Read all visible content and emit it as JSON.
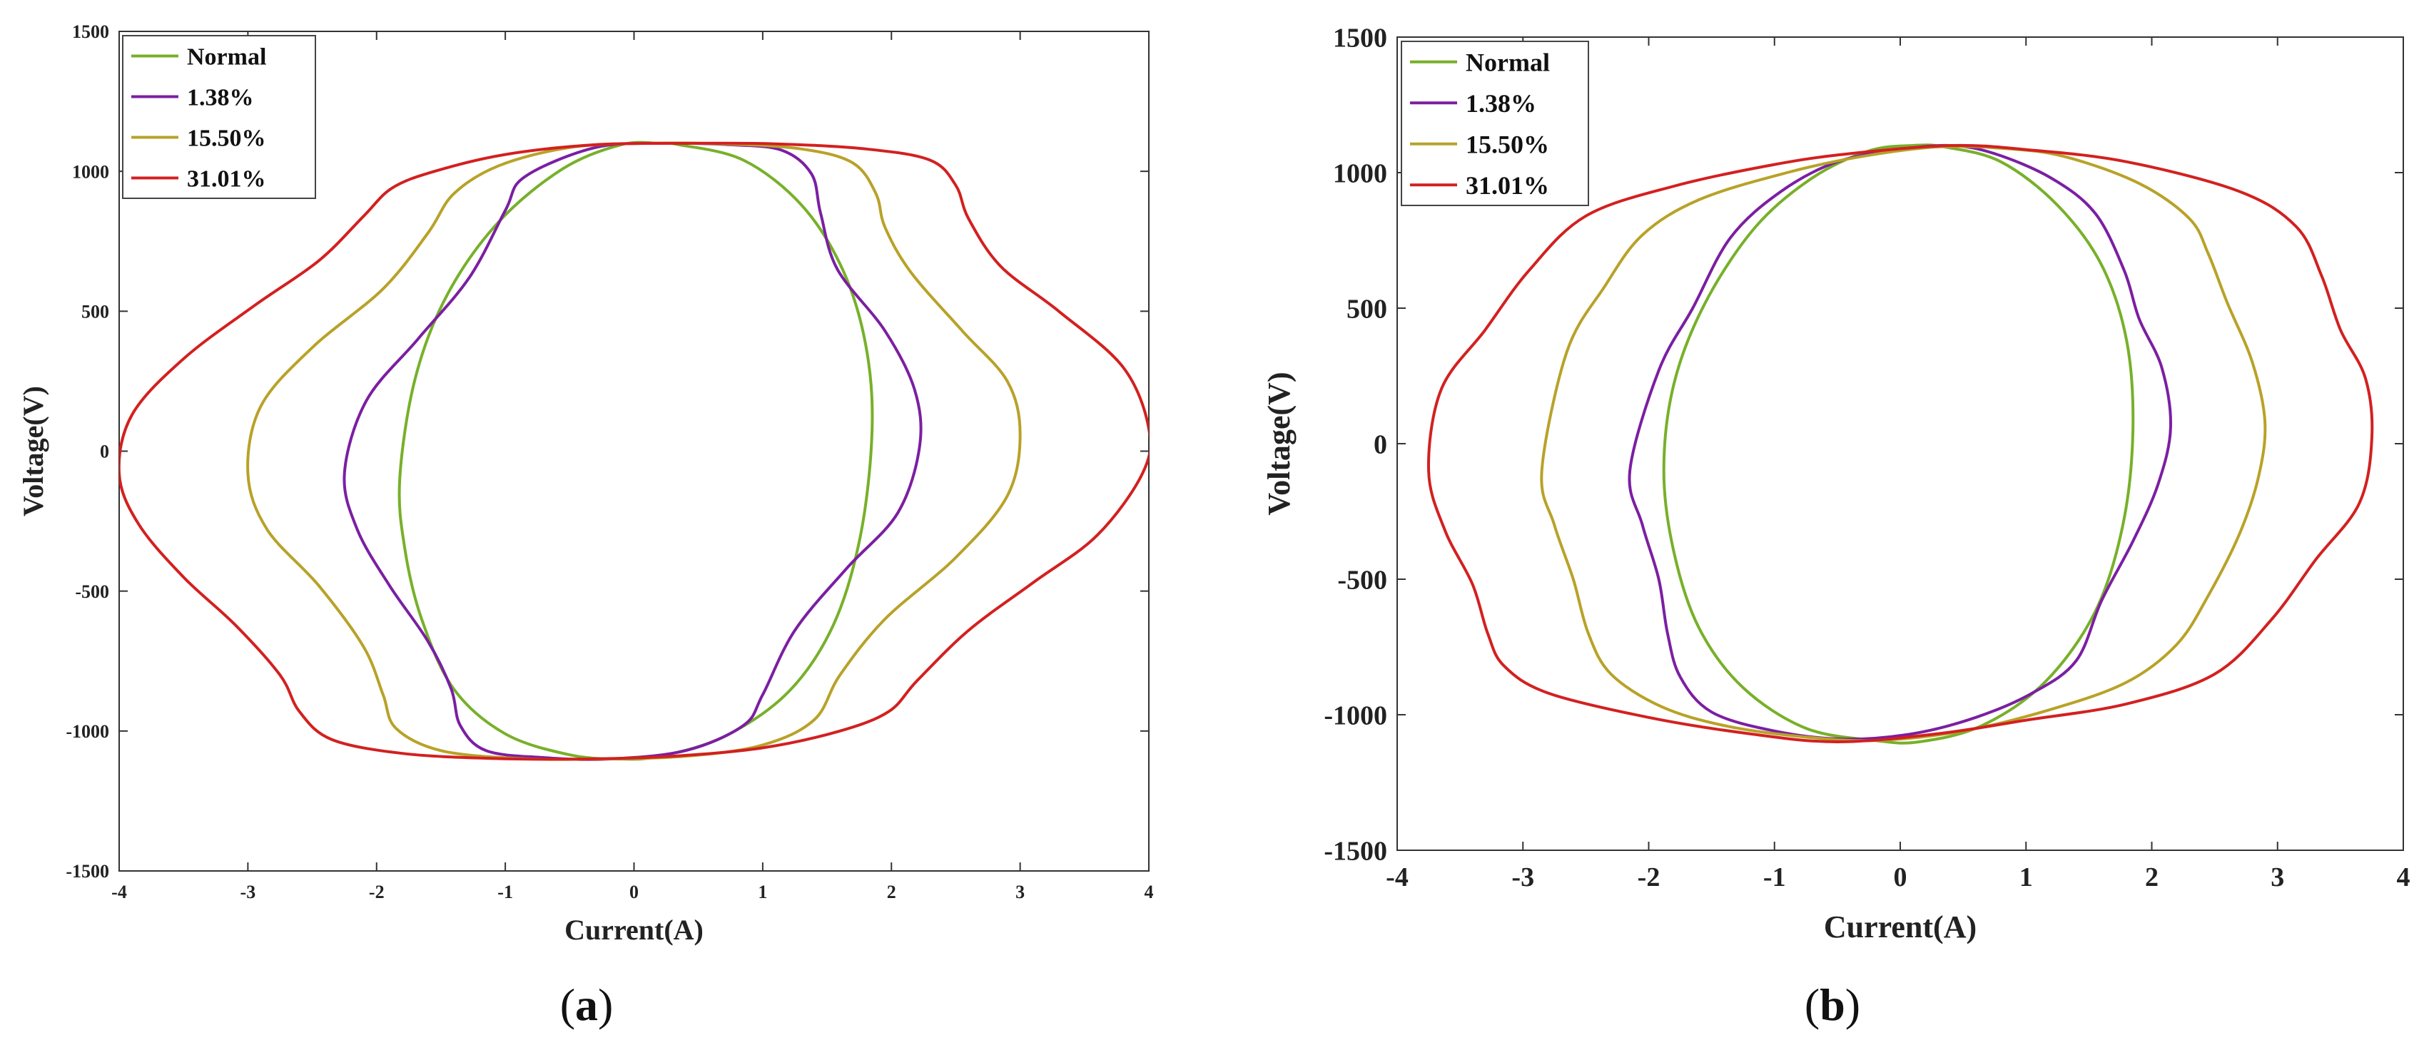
{
  "chart_data": [
    {
      "type": "line",
      "panel_label": "a",
      "title": "",
      "xlabel": "Current(A)",
      "ylabel": "Voltage(V)",
      "xlim": [
        -4,
        4
      ],
      "ylim": [
        -1500,
        1500
      ],
      "xticks": [
        "-4",
        "-3",
        "-2",
        "-1",
        "0",
        "1",
        "2",
        "3",
        "4"
      ],
      "yticks": [
        "1500",
        "1000",
        "500",
        "0",
        "-500",
        "-1000",
        "-1500"
      ],
      "grid": false,
      "legend_position": "top-left",
      "series": [
        {
          "name": "Normal",
          "color": "#77B02A",
          "points": [
            [
              -1.82,
              -100
            ],
            [
              -1.78,
              -350
            ],
            [
              -1.65,
              -600
            ],
            [
              -1.4,
              -850
            ],
            [
              -1.0,
              -1010
            ],
            [
              -0.5,
              -1085
            ],
            [
              -0.1,
              -1100
            ],
            [
              0.2,
              -1090
            ],
            [
              0.7,
              -1020
            ],
            [
              1.2,
              -860
            ],
            [
              1.55,
              -620
            ],
            [
              1.76,
              -300
            ],
            [
              1.85,
              80
            ],
            [
              1.8,
              380
            ],
            [
              1.62,
              650
            ],
            [
              1.3,
              880
            ],
            [
              0.85,
              1040
            ],
            [
              0.35,
              1095
            ],
            [
              0.2,
              1100
            ],
            [
              -0.1,
              1095
            ],
            [
              -0.55,
              1010
            ],
            [
              -1.05,
              820
            ],
            [
              -1.45,
              560
            ],
            [
              -1.7,
              260
            ],
            [
              -1.82,
              -100
            ]
          ]
        },
        {
          "name": "1.38%",
          "color": "#7B1FA2",
          "points": [
            [
              -2.25,
              -80
            ],
            [
              -2.15,
              -280
            ],
            [
              -1.9,
              -480
            ],
            [
              -1.6,
              -680
            ],
            [
              -1.42,
              -850
            ],
            [
              -1.35,
              -980
            ],
            [
              -1.15,
              -1070
            ],
            [
              -0.7,
              -1095
            ],
            [
              -0.2,
              -1100
            ],
            [
              0.4,
              -1070
            ],
            [
              0.85,
              -980
            ],
            [
              1.0,
              -870
            ],
            [
              1.25,
              -640
            ],
            [
              1.65,
              -420
            ],
            [
              2.05,
              -220
            ],
            [
              2.22,
              20
            ],
            [
              2.18,
              220
            ],
            [
              1.95,
              430
            ],
            [
              1.58,
              650
            ],
            [
              1.45,
              850
            ],
            [
              1.38,
              990
            ],
            [
              1.15,
              1075
            ],
            [
              0.75,
              1095
            ],
            [
              0.25,
              1100
            ],
            [
              -0.3,
              1085
            ],
            [
              -0.85,
              980
            ],
            [
              -1.0,
              860
            ],
            [
              -1.28,
              620
            ],
            [
              -1.68,
              400
            ],
            [
              -2.08,
              180
            ],
            [
              -2.25,
              -80
            ]
          ]
        },
        {
          "name": "15.50%",
          "color": "#B8A228",
          "points": [
            [
              -3.0,
              -80
            ],
            [
              -2.85,
              -280
            ],
            [
              -2.45,
              -480
            ],
            [
              -2.1,
              -700
            ],
            [
              -1.95,
              -870
            ],
            [
              -1.85,
              -990
            ],
            [
              -1.5,
              -1070
            ],
            [
              -0.9,
              -1098
            ],
            [
              -0.3,
              -1100
            ],
            [
              0.4,
              -1090
            ],
            [
              1.0,
              -1050
            ],
            [
              1.4,
              -960
            ],
            [
              1.6,
              -800
            ],
            [
              1.95,
              -600
            ],
            [
              2.5,
              -380
            ],
            [
              2.9,
              -160
            ],
            [
              3.0,
              60
            ],
            [
              2.9,
              250
            ],
            [
              2.55,
              430
            ],
            [
              2.15,
              640
            ],
            [
              1.95,
              800
            ],
            [
              1.88,
              920
            ],
            [
              1.7,
              1030
            ],
            [
              1.3,
              1080
            ],
            [
              0.7,
              1098
            ],
            [
              0.1,
              1100
            ],
            [
              -0.5,
              1085
            ],
            [
              -1.05,
              1020
            ],
            [
              -1.4,
              920
            ],
            [
              -1.6,
              780
            ],
            [
              -1.95,
              580
            ],
            [
              -2.5,
              370
            ],
            [
              -2.9,
              160
            ],
            [
              -3.0,
              -80
            ]
          ]
        },
        {
          "name": "31.01%",
          "color": "#D32020",
          "points": [
            [
              -4.0,
              -80
            ],
            [
              -3.85,
              -260
            ],
            [
              -3.5,
              -450
            ],
            [
              -3.1,
              -620
            ],
            [
              -2.75,
              -800
            ],
            [
              -2.6,
              -930
            ],
            [
              -2.35,
              -1030
            ],
            [
              -1.8,
              -1080
            ],
            [
              -1.1,
              -1098
            ],
            [
              -0.4,
              -1100
            ],
            [
              0.3,
              -1090
            ],
            [
              1.0,
              -1060
            ],
            [
              1.6,
              -1000
            ],
            [
              1.98,
              -930
            ],
            [
              2.2,
              -820
            ],
            [
              2.6,
              -640
            ],
            [
              3.1,
              -470
            ],
            [
              3.6,
              -300
            ],
            [
              3.95,
              -80
            ],
            [
              4.0,
              80
            ],
            [
              3.8,
              300
            ],
            [
              3.3,
              500
            ],
            [
              2.85,
              660
            ],
            [
              2.6,
              830
            ],
            [
              2.5,
              950
            ],
            [
              2.3,
              1040
            ],
            [
              1.8,
              1080
            ],
            [
              1.1,
              1098
            ],
            [
              0.4,
              1100
            ],
            [
              -0.3,
              1095
            ],
            [
              -1.0,
              1060
            ],
            [
              -1.55,
              1000
            ],
            [
              -1.88,
              940
            ],
            [
              -2.1,
              840
            ],
            [
              -2.45,
              680
            ],
            [
              -2.95,
              520
            ],
            [
              -3.5,
              330
            ],
            [
              -3.9,
              130
            ],
            [
              -4.0,
              -80
            ]
          ]
        }
      ]
    },
    {
      "type": "line",
      "panel_label": "b",
      "title": "",
      "xlabel": "Current(A)",
      "ylabel": "Voltage(V)",
      "xlim": [
        -4,
        4
      ],
      "ylim": [
        -1500,
        1500
      ],
      "xticks": [
        "-4",
        "-3",
        "-2",
        "-1",
        "0",
        "1",
        "2",
        "3",
        "4"
      ],
      "yticks": [
        "1500",
        "1000",
        "500",
        "0",
        "-500",
        "-1000",
        "-1500"
      ],
      "grid": false,
      "legend_position": "top-left",
      "series": [
        {
          "name": "Normal",
          "color": "#77B02A",
          "points": [
            [
              -1.88,
              -100
            ],
            [
              -1.8,
              -400
            ],
            [
              -1.6,
              -680
            ],
            [
              -1.25,
              -900
            ],
            [
              -0.75,
              -1050
            ],
            [
              -0.2,
              -1095
            ],
            [
              0.15,
              -1100
            ],
            [
              0.65,
              -1040
            ],
            [
              1.15,
              -880
            ],
            [
              1.55,
              -620
            ],
            [
              1.77,
              -300
            ],
            [
              1.85,
              50
            ],
            [
              1.8,
              380
            ],
            [
              1.6,
              660
            ],
            [
              1.25,
              880
            ],
            [
              0.8,
              1040
            ],
            [
              0.35,
              1095
            ],
            [
              0.1,
              1100
            ],
            [
              -0.25,
              1080
            ],
            [
              -0.7,
              980
            ],
            [
              -1.15,
              800
            ],
            [
              -1.55,
              520
            ],
            [
              -1.8,
              220
            ],
            [
              -1.88,
              -100
            ]
          ]
        },
        {
          "name": "1.38%",
          "color": "#7B1FA2",
          "points": [
            [
              -2.15,
              -100
            ],
            [
              -2.05,
              -300
            ],
            [
              -1.92,
              -500
            ],
            [
              -1.85,
              -700
            ],
            [
              -1.75,
              -860
            ],
            [
              -1.5,
              -990
            ],
            [
              -1.0,
              -1060
            ],
            [
              -0.45,
              -1090
            ],
            [
              0.1,
              -1070
            ],
            [
              0.6,
              -1010
            ],
            [
              1.05,
              -920
            ],
            [
              1.4,
              -800
            ],
            [
              1.6,
              -580
            ],
            [
              1.85,
              -360
            ],
            [
              2.05,
              -150
            ],
            [
              2.15,
              60
            ],
            [
              2.08,
              280
            ],
            [
              1.9,
              460
            ],
            [
              1.78,
              640
            ],
            [
              1.55,
              850
            ],
            [
              1.2,
              980
            ],
            [
              0.75,
              1070
            ],
            [
              0.4,
              1100
            ],
            [
              0.0,
              1085
            ],
            [
              -0.5,
              1040
            ],
            [
              -0.95,
              930
            ],
            [
              -1.35,
              760
            ],
            [
              -1.65,
              500
            ],
            [
              -1.92,
              270
            ],
            [
              -2.15,
              -100
            ]
          ]
        },
        {
          "name": "15.50%",
          "color": "#B8A228",
          "points": [
            [
              -2.85,
              -100
            ],
            [
              -2.75,
              -300
            ],
            [
              -2.6,
              -500
            ],
            [
              -2.48,
              -700
            ],
            [
              -2.3,
              -850
            ],
            [
              -1.9,
              -970
            ],
            [
              -1.4,
              -1040
            ],
            [
              -0.8,
              -1080
            ],
            [
              -0.2,
              -1095
            ],
            [
              0.5,
              -1060
            ],
            [
              1.2,
              -980
            ],
            [
              1.8,
              -880
            ],
            [
              2.2,
              -740
            ],
            [
              2.45,
              -560
            ],
            [
              2.7,
              -330
            ],
            [
              2.85,
              -120
            ],
            [
              2.9,
              80
            ],
            [
              2.8,
              300
            ],
            [
              2.6,
              520
            ],
            [
              2.45,
              700
            ],
            [
              2.3,
              830
            ],
            [
              1.9,
              960
            ],
            [
              1.3,
              1060
            ],
            [
              0.8,
              1090
            ],
            [
              0.3,
              1095
            ],
            [
              -0.3,
              1060
            ],
            [
              -0.9,
              1000
            ],
            [
              -1.6,
              900
            ],
            [
              -2.05,
              770
            ],
            [
              -2.35,
              580
            ],
            [
              -2.65,
              340
            ],
            [
              -2.85,
              -100
            ]
          ]
        },
        {
          "name": "31.01%",
          "color": "#D32020",
          "points": [
            [
              -3.75,
              -100
            ],
            [
              -3.62,
              -320
            ],
            [
              -3.4,
              -520
            ],
            [
              -3.28,
              -700
            ],
            [
              -3.15,
              -820
            ],
            [
              -2.8,
              -920
            ],
            [
              -2.0,
              -1010
            ],
            [
              -1.2,
              -1070
            ],
            [
              -0.5,
              -1100
            ],
            [
              0.3,
              -1070
            ],
            [
              1.0,
              -1020
            ],
            [
              1.8,
              -960
            ],
            [
              2.5,
              -850
            ],
            [
              2.95,
              -650
            ],
            [
              3.3,
              -430
            ],
            [
              3.65,
              -220
            ],
            [
              3.75,
              20
            ],
            [
              3.7,
              240
            ],
            [
              3.5,
              420
            ],
            [
              3.35,
              620
            ],
            [
              3.15,
              800
            ],
            [
              2.7,
              930
            ],
            [
              1.8,
              1040
            ],
            [
              1.0,
              1085
            ],
            [
              0.4,
              1100
            ],
            [
              -0.4,
              1070
            ],
            [
              -1.0,
              1030
            ],
            [
              -1.8,
              950
            ],
            [
              -2.5,
              840
            ],
            [
              -2.95,
              640
            ],
            [
              -3.3,
              420
            ],
            [
              -3.65,
              200
            ],
            [
              -3.75,
              -100
            ]
          ]
        }
      ]
    }
  ]
}
